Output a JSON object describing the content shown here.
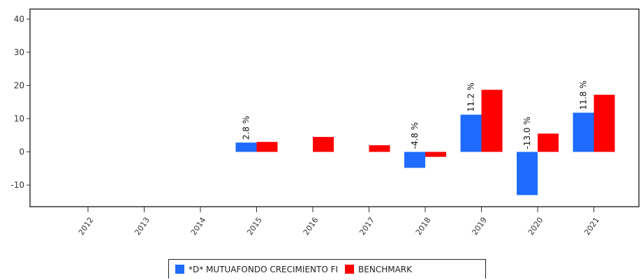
{
  "chart_data": {
    "type": "bar",
    "categories": [
      "2012",
      "2013",
      "2014",
      "2015",
      "2016",
      "2017",
      "2018",
      "2019",
      "2020",
      "2021"
    ],
    "series": [
      {
        "name": "*D* MUTUAFONDO CRECIMIENTO FI",
        "color": "#1f6bff",
        "values": [
          null,
          null,
          null,
          2.8,
          null,
          null,
          -4.8,
          11.2,
          -13.0,
          11.8
        ]
      },
      {
        "name": "BENCHMARK",
        "color": "#ff0000",
        "values": [
          null,
          null,
          null,
          3.0,
          4.5,
          2.0,
          -1.5,
          18.7,
          5.5,
          17.2
        ]
      }
    ],
    "data_labels": [
      "",
      "",
      "",
      "2.8 %",
      "",
      "",
      "-4.8 %",
      "11.2 %",
      "-13.0 %",
      "11.8 %"
    ],
    "yticks": [
      40,
      30,
      20,
      10,
      0,
      -10
    ],
    "ylim": [
      -16.5,
      43
    ],
    "grid": false,
    "legend_position": "bottom"
  }
}
